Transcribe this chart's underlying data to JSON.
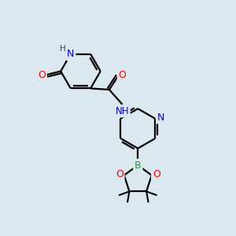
{
  "bg_color": "#dce8f0",
  "atom_colors": {
    "C": "#000000",
    "H": "#404040",
    "N": "#0000ff",
    "O": "#ff0000",
    "B": "#00bb00"
  },
  "bond_color": "#000000",
  "bond_width": 1.6,
  "figsize": [
    3.0,
    3.0
  ],
  "dpi": 100,
  "xlim": [
    0,
    10
  ],
  "ylim": [
    0,
    10
  ]
}
